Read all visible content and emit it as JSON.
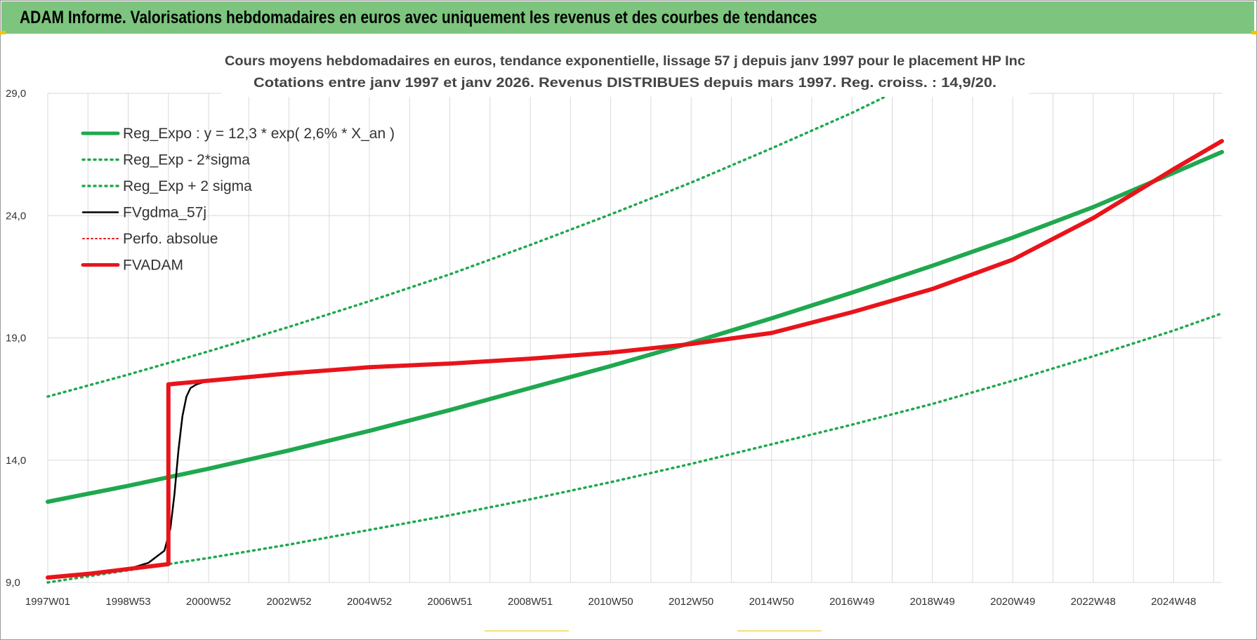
{
  "header": {
    "title": "ADAM Informe. Valorisations hebdomadaires en euros avec uniquement les revenus et des courbes de tendances"
  },
  "colors": {
    "banner": "#7dc57e",
    "reg_green": "#1fa84f",
    "red": "#e8141b",
    "black": "#000000",
    "grid": "#d9d9d9"
  },
  "chart_data": {
    "type": "line",
    "title": "Cours moyens hebdomadaires en euros, tendance exponentielle, lissage 57 j depuis janv 1997 pour le placement HP Inc",
    "subtitle": "Cotations entre janv 1997 et janv 2026. Revenus DISTRIBUES depuis mars 1997. Reg. croiss. : 14,9/20.",
    "xlabel": "",
    "ylabel": "",
    "xlim": [
      1997.0,
      2026.2
    ],
    "ylim": [
      9.0,
      29.0
    ],
    "y_ticks": [
      "9,0",
      "14,0",
      "19,0",
      "24,0",
      "29,0"
    ],
    "y_tick_values": [
      9,
      14,
      19,
      24,
      29
    ],
    "x_ticks": [
      "1997W01",
      "1998W53",
      "2000W52",
      "2002W52",
      "2004W52",
      "2006W51",
      "2008W51",
      "2010W50",
      "2012W50",
      "2014W50",
      "2016W49",
      "2018W49",
      "2020W49",
      "2022W48",
      "2024W48"
    ],
    "x_tick_values": [
      1997.0,
      1999.0,
      2001.0,
      2003.0,
      2005.0,
      2007.0,
      2009.0,
      2011.0,
      2013.0,
      2015.0,
      2017.0,
      2019.0,
      2021.0,
      2023.0,
      2025.0
    ],
    "grid": true,
    "legend_position": "top-left",
    "series": [
      {
        "name": "Reg_Expo : y = 12,3 * exp( 2,6% *  X_an )",
        "style": "solid-thick",
        "color": "#1fa84f",
        "x": [
          1997,
          1999,
          2001,
          2003,
          2005,
          2007,
          2009,
          2011,
          2013,
          2015,
          2017,
          2019,
          2021,
          2023,
          2025,
          2026.2
        ],
        "y": [
          12.3,
          12.95,
          13.65,
          14.4,
          15.2,
          16.05,
          16.95,
          17.85,
          18.8,
          19.8,
          20.85,
          21.95,
          23.1,
          24.35,
          25.75,
          26.6
        ]
      },
      {
        "name": "Reg_Exp - 2*sigma",
        "style": "dotted",
        "color": "#1fa84f",
        "x": [
          1997,
          1999,
          2001,
          2003,
          2005,
          2007,
          2009,
          2011,
          2013,
          2015,
          2017,
          2019,
          2021,
          2023,
          2025,
          2026.2
        ],
        "y": [
          9.0,
          9.5,
          10.0,
          10.55,
          11.15,
          11.75,
          12.4,
          13.1,
          13.85,
          14.65,
          15.45,
          16.3,
          17.25,
          18.25,
          19.3,
          20.0
        ]
      },
      {
        "name": "Reg_Exp + 2 sigma",
        "style": "dotted",
        "color": "#1fa84f",
        "x": [
          1997,
          1999,
          2001,
          2003,
          2005,
          2007,
          2009,
          2011,
          2013,
          2015,
          2017,
          2019
        ],
        "y": [
          16.6,
          17.5,
          18.45,
          19.45,
          20.5,
          21.6,
          22.8,
          24.05,
          25.35,
          26.75,
          28.2,
          29.8
        ]
      },
      {
        "name": "FVgdma_57j",
        "style": "solid-thin",
        "color": "#000000",
        "x": [
          1997,
          1998,
          1999,
          1999.5,
          1999.9,
          2000.05,
          2000.15,
          2000.25,
          2000.35,
          2000.45,
          2000.55,
          2000.7,
          2001
        ],
        "y": [
          9.2,
          9.35,
          9.55,
          9.8,
          10.3,
          11.2,
          12.6,
          14.4,
          15.8,
          16.6,
          16.95,
          17.1,
          17.25
        ]
      },
      {
        "name": "Perfo. absolue",
        "style": "dotted-thin",
        "color": "#e8141b",
        "x": [],
        "y": []
      },
      {
        "name": "FVADAM",
        "style": "solid-thick",
        "color": "#e8141b",
        "x": [
          1997,
          1998,
          1999,
          2000,
          2000.0,
          2001,
          2003,
          2005,
          2007,
          2009,
          2011,
          2013,
          2015,
          2017,
          2019,
          2021,
          2023,
          2025,
          2026.2
        ],
        "y": [
          9.2,
          9.35,
          9.55,
          9.75,
          17.1,
          17.25,
          17.55,
          17.8,
          17.95,
          18.15,
          18.4,
          18.75,
          19.2,
          20.05,
          21.0,
          22.2,
          23.9,
          25.9,
          27.05
        ]
      }
    ]
  }
}
